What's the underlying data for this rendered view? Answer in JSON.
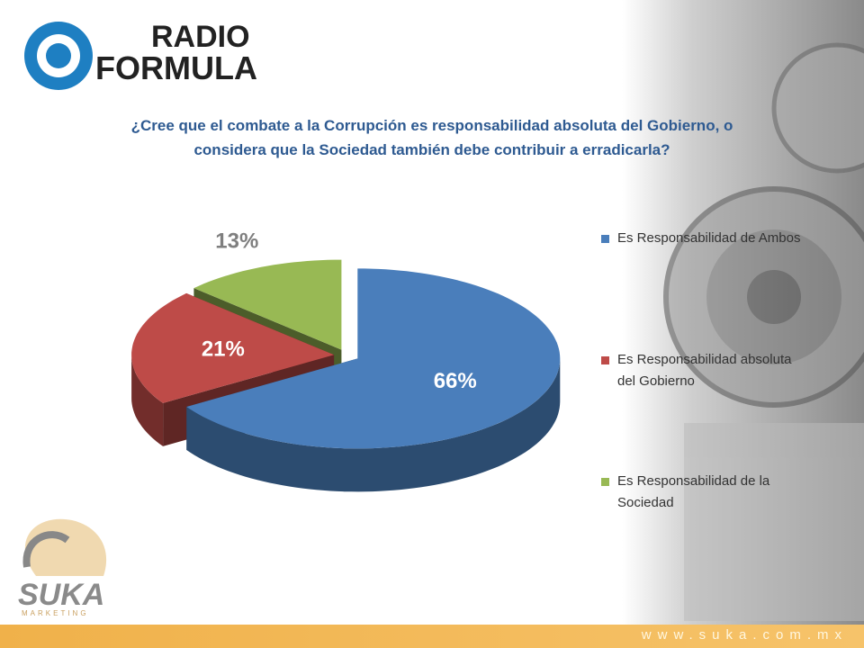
{
  "branding": {
    "radio_logo_top": "RADIO",
    "radio_logo_bottom": "FORMULA",
    "suka_logo": "SUKA",
    "suka_tagline": "MARKETING",
    "website": "www.suka.com.mx"
  },
  "chart_data": {
    "type": "pie3d",
    "title": "¿Cree que el combate a la Corrupción es responsabilidad absoluta del Gobierno, o considera que la Sociedad también debe contribuir a erradicarla?",
    "categories": [
      "Es Responsabilidad de Ambos",
      "Es Responsabilidad absoluta del Gobierno",
      "Es Responsabilidad de la Sociedad"
    ],
    "values": [
      66,
      21,
      13
    ],
    "value_labels": [
      "66%",
      "21%",
      "13%"
    ],
    "colors": [
      "#4a7ebb",
      "#be4b48",
      "#98b954"
    ],
    "legend": "right"
  }
}
